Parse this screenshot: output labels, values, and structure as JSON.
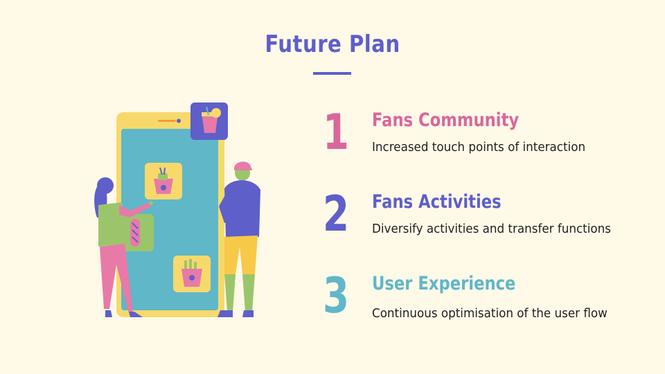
{
  "slide": {
    "title": "Future Plan",
    "items": [
      {
        "number": "1",
        "heading": "Fans Community",
        "description": "Increased touch points of interaction",
        "color": "#d9679a"
      },
      {
        "number": "2",
        "heading": "Fans Activities",
        "description": "Diversify activities and transfer functions",
        "color": "#5e5fc9"
      },
      {
        "number": "3",
        "heading": "User Experience",
        "description": "Continuous optimisation of the user flow",
        "color": "#5fb7c8"
      }
    ]
  },
  "colors": {
    "background": "#fff9e8",
    "accent": "#5e5fc9",
    "phone_frame": "#f7d96b",
    "phone_screen": "#5fb7c8"
  },
  "illustration": {
    "icons": [
      "drink-icon",
      "takeout-box-icon",
      "hotdog-icon",
      "fries-icon"
    ]
  }
}
